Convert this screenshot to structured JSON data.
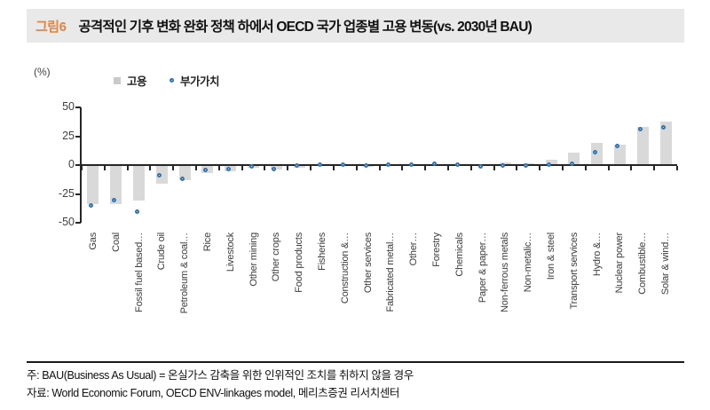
{
  "figure": {
    "tag": "그림6",
    "title": "공격적인 기후 변화 완화 정책 하에서 OECD 국가 업종별 고용 변동(vs. 2030년 BAU)"
  },
  "chart_data": {
    "type": "bar",
    "unit_label": "(%)",
    "legend_position": "top",
    "grid": false,
    "ylim": [
      -50,
      50
    ],
    "yticks": [
      50,
      25,
      0,
      -25,
      -50
    ],
    "categories": [
      "Gas",
      "Coal",
      "Fossil fuel based…",
      "Crude oil",
      "Petroleum & coal…",
      "Rice",
      "Livestock",
      "Other mining",
      "Other crops",
      "Food products",
      "Fisheries",
      "Construction &…",
      "Other services",
      "Fabricated metal…",
      "Other…",
      "Forestry",
      "Chemicals",
      "Paper & paper…",
      "Non-ferrous metals",
      "Non-metalic…",
      "Iron & steel",
      "Transport services",
      "Hydro &…",
      "Nuclear power",
      "Combustible…",
      "Solar & wind…"
    ],
    "series": [
      {
        "name": "고용",
        "type": "bar",
        "marker": "square",
        "values": [
          -34,
          -34,
          -31,
          -16,
          -13,
          -7,
          -5,
          -2.5,
          -4,
          -2,
          -1,
          -1,
          -1.5,
          -1,
          -1,
          -0.5,
          -1,
          -1,
          2,
          1.5,
          5,
          11,
          19,
          18,
          33,
          38
        ]
      },
      {
        "name": "부가가치",
        "type": "scatter",
        "marker": "circle",
        "values": [
          -37,
          -32,
          -42,
          -11,
          -14,
          -6,
          -5,
          -3,
          -5,
          -2,
          -1.5,
          -1.5,
          -2,
          -1.5,
          -1.5,
          -1,
          -1.5,
          -3,
          -2,
          -2,
          -1.5,
          -0.5,
          9,
          15,
          29,
          31
        ]
      }
    ]
  },
  "colors": {
    "figure_tag": "#dd8445",
    "bar": "#d9d9d9",
    "marker": "#2f74b5",
    "title_bar_bg": "#e9e9e9",
    "axis": "#262626"
  },
  "footer": {
    "note": "주: BAU(Business As Usual) = 온실가스 감축을 위한 인위적인 조치를 취하지 않을 경우",
    "source": "자료: World Economic Forum, OECD ENV-linkages model, 메리츠증권 리서치센터"
  }
}
